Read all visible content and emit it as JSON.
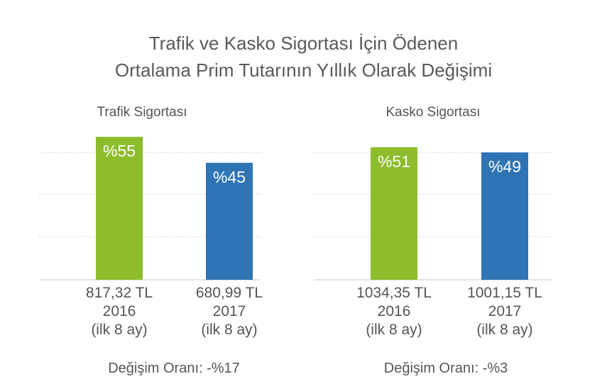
{
  "title_line1": "Trafik ve Kasko Sigortası İçin Ödenen",
  "title_line2": "Ortalama Prim Tutarının Yıllık Olarak Değişimi",
  "colors": {
    "green": "#8dbd2c",
    "blue": "#2f74b5",
    "grid": "#c9c9c9",
    "text": "#555555"
  },
  "chart_data": [
    {
      "type": "bar",
      "subtitle": "Trafik Sigortası",
      "bars": [
        {
          "label": "%55",
          "value": 55,
          "amount": "817,32 TL",
          "year": "2016",
          "period": "(ilk 8 ay)",
          "color": "green"
        },
        {
          "label": "%45",
          "value": 45,
          "amount": "680,99 TL",
          "year": "2017",
          "period": "(ilk 8 ay)",
          "color": "blue"
        }
      ],
      "footer": "Değişim Oranı: -%17"
    },
    {
      "type": "bar",
      "subtitle": "Kasko Sigortası",
      "bars": [
        {
          "label": "%51",
          "value": 51,
          "amount": "1034,35 TL",
          "year": "2016",
          "period": "(ilk 8 ay)",
          "color": "green"
        },
        {
          "label": "%49",
          "value": 49,
          "amount": "1001,15 TL",
          "year": "2017",
          "period": "(ilk 8 ay)",
          "color": "blue"
        }
      ],
      "footer": "Değişim Oranı: -%3"
    }
  ]
}
